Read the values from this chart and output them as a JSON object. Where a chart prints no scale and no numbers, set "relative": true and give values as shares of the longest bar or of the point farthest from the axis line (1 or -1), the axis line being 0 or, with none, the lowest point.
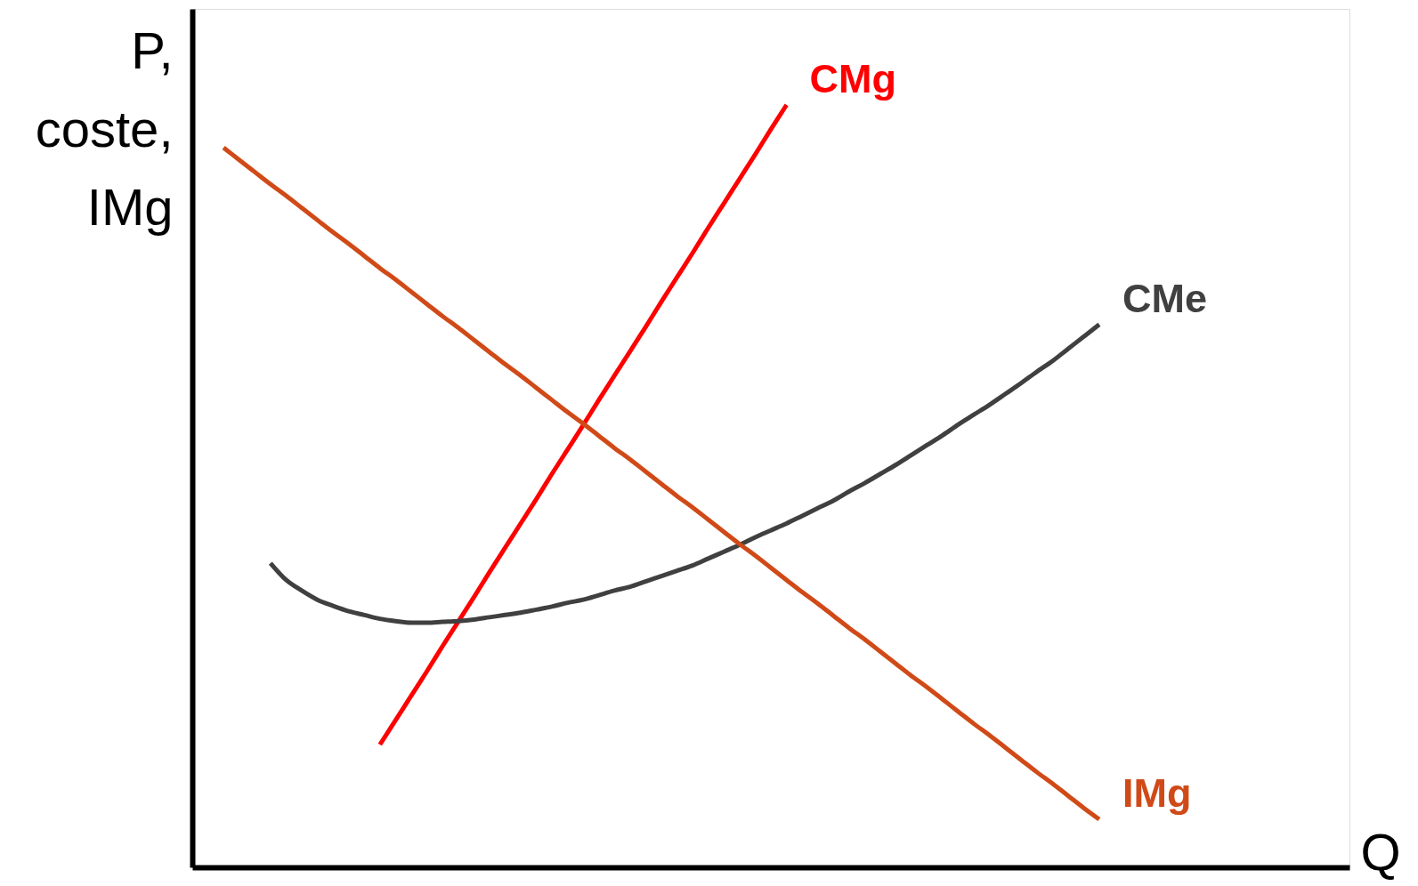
{
  "chart_data": {
    "type": "line",
    "relative": true,
    "ylabel": "P, coste, IMg",
    "xlabel": "Q",
    "categories": [
      null,
      null,
      null,
      null,
      null,
      null,
      null,
      null,
      null,
      null,
      null,
      null,
      null,
      null,
      null,
      null,
      null,
      null,
      null,
      null,
      null,
      null,
      null,
      null,
      null,
      null,
      null,
      null,
      null,
      null,
      null,
      null,
      null,
      null,
      null,
      null,
      null,
      null,
      null,
      null,
      null,
      null,
      null,
      null,
      null,
      null,
      null,
      null,
      null,
      null,
      null,
      null,
      null,
      null,
      null,
      null,
      null,
      null,
      null,
      null,
      null,
      null,
      null,
      null,
      null,
      null,
      null,
      null,
      null,
      null,
      null,
      null,
      null,
      null,
      null
    ],
    "series": [
      {
        "name": "CMg",
        "color": "#ff0000",
        "values": [
          null,
          null,
          null,
          null,
          null,
          null,
          null,
          null,
          null,
          null,
          null,
          null,
          0.161,
          0.193,
          0.225,
          0.257,
          0.29,
          0.322,
          0.354,
          0.387,
          0.419,
          0.451,
          0.483,
          0.516,
          0.548,
          0.58,
          0.613,
          0.645,
          0.677,
          0.709,
          0.742,
          0.774,
          0.806,
          0.839,
          0.871,
          0.903,
          0.935,
          0.968,
          1,
          null,
          null,
          null,
          null,
          null,
          null,
          null,
          null,
          null,
          null,
          null,
          null,
          null,
          null,
          null,
          null,
          null,
          null,
          null,
          null,
          null,
          null,
          null,
          null,
          null,
          null,
          null,
          null,
          null,
          null,
          null,
          null,
          null,
          null,
          null,
          null
        ]
      },
      {
        "name": "CMe",
        "color": "#404040",
        "values": [
          null,
          null,
          null,
          null,
          null,
          0.399,
          0.377,
          0.363,
          0.351,
          0.343,
          0.336,
          0.331,
          0.326,
          0.323,
          0.321,
          0.321,
          0.322,
          0.323,
          0.325,
          0.328,
          0.331,
          0.334,
          0.338,
          0.342,
          0.347,
          0.351,
          0.357,
          0.363,
          0.368,
          0.375,
          0.382,
          0.389,
          0.396,
          0.405,
          0.414,
          0.423,
          0.433,
          0.442,
          0.451,
          0.461,
          0.471,
          0.481,
          0.493,
          0.504,
          0.516,
          0.528,
          0.541,
          0.554,
          0.567,
          0.581,
          0.594,
          0.607,
          0.621,
          0.635,
          0.65,
          0.664,
          0.68,
          0.696,
          0.712,
          null,
          null,
          null,
          null,
          null,
          null,
          null,
          null,
          null,
          null,
          null,
          null,
          null,
          null,
          null,
          null
        ]
      },
      {
        "name": "IMg",
        "color": "#d04a18",
        "values": [
          null,
          null,
          0.944,
          0.928,
          0.912,
          0.896,
          0.881,
          0.865,
          0.849,
          0.833,
          0.818,
          0.802,
          0.786,
          0.771,
          0.755,
          0.739,
          0.723,
          0.708,
          0.692,
          0.676,
          0.66,
          0.645,
          0.629,
          0.613,
          0.597,
          0.582,
          0.566,
          0.55,
          0.535,
          0.519,
          0.503,
          0.487,
          0.472,
          0.456,
          0.44,
          0.424,
          0.409,
          0.393,
          0.377,
          0.361,
          0.346,
          0.33,
          0.314,
          0.299,
          0.283,
          0.267,
          0.251,
          0.236,
          0.22,
          0.204,
          0.188,
          0.173,
          0.157,
          0.141,
          0.125,
          0.11,
          0.094,
          0.078,
          0.063,
          null,
          null,
          null,
          null,
          null,
          null,
          null,
          null,
          null,
          null,
          null,
          null,
          null,
          null,
          null,
          null
        ]
      }
    ]
  }
}
